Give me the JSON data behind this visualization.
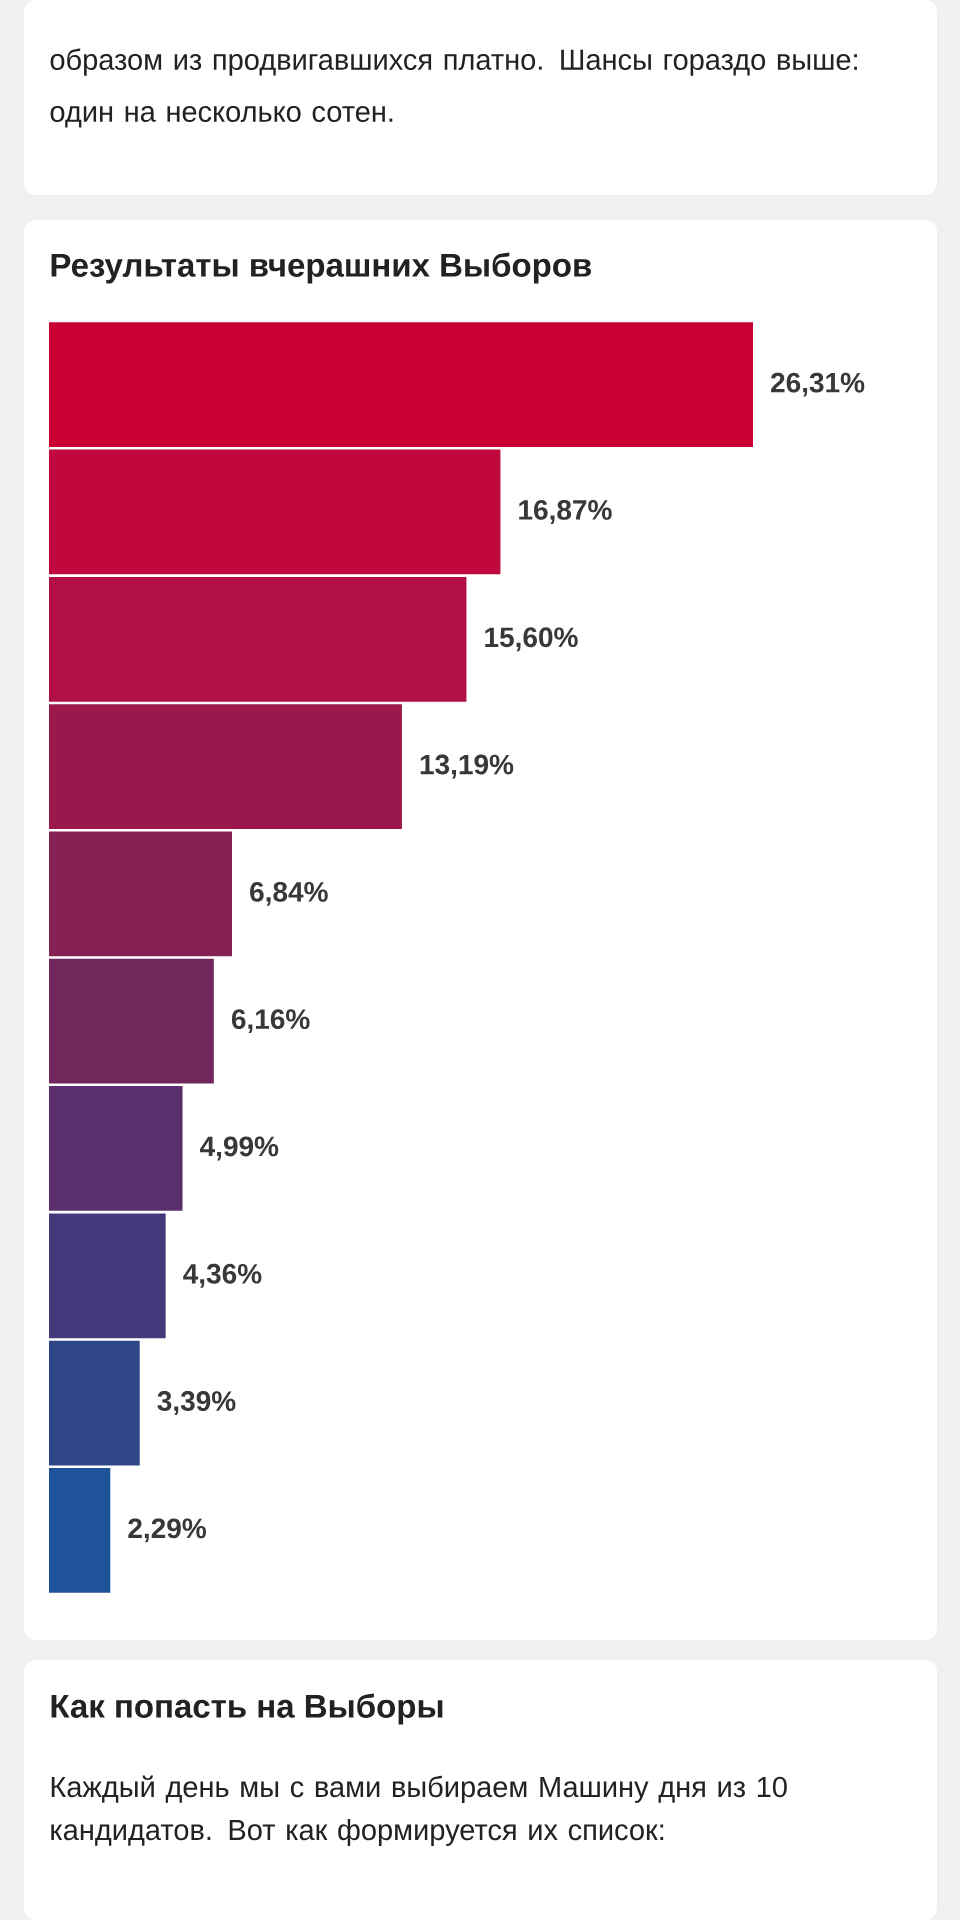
{
  "chart_data": {
    "type": "bar",
    "orientation": "horizontal",
    "title": "Результаты вчерашних Выборов",
    "categories": [
      null,
      null,
      null,
      null,
      null,
      null,
      null,
      null,
      null,
      null
    ],
    "values": [
      26.31,
      16.87,
      15.6,
      13.19,
      6.84,
      6.16,
      4.99,
      4.36,
      3.39,
      2.29
    ],
    "value_labels": [
      "26,31%",
      "16,87%",
      "15,60%",
      "13,19%",
      "6,84%",
      "6,16%",
      "4,99%",
      "4,36%",
      "3,39%",
      "2,29%"
    ],
    "colors": [
      "#c90032",
      "#c0073e",
      "#b10f46",
      "#9b184c",
      "#852154",
      "#70275c",
      "#5b2e6e",
      "#443a7b",
      "#2f4686",
      "#1f5399"
    ],
    "annotations": [
      "образом из продвигавшихся платно. Шансы гораздо выше: один на несколько сотен.",
      "Как попасть на Выборы",
      "Каждый день мы с вами выбираем Машину дня из 10 кандидатов. Вот как формируется их список:"
    ]
  }
}
